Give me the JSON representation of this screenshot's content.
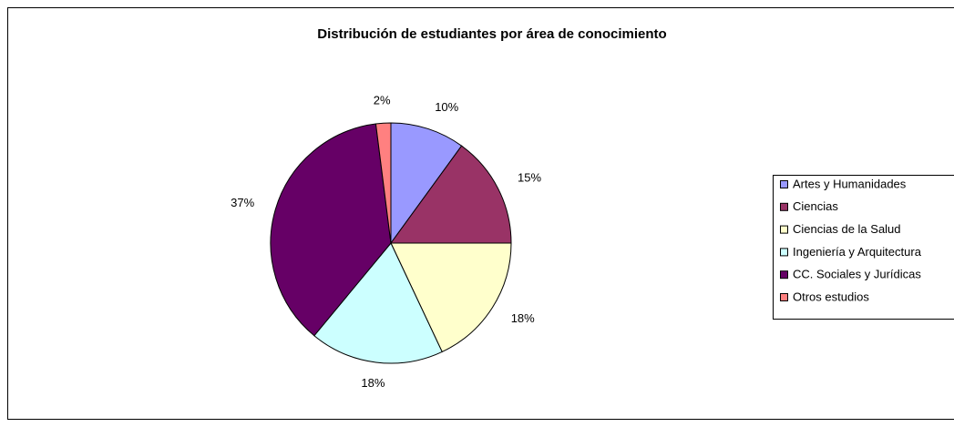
{
  "chart_data": {
    "type": "pie",
    "title": "Distribución de estudiantes por área de conocimiento",
    "categories": [
      "Artes y Humanidades",
      "Ciencias",
      "Ciencias de la Salud",
      "Ingeniería y Arquitectura",
      "CC. Sociales y Jurídicas",
      "Otros estudios"
    ],
    "values": [
      10,
      15,
      18,
      18,
      37,
      2
    ],
    "value_labels": [
      "10%",
      "15%",
      "18%",
      "18%",
      "37%",
      "2%"
    ],
    "colors": [
      "#9999ff",
      "#993366",
      "#ffffcc",
      "#ccffff",
      "#660066",
      "#ff8080"
    ],
    "legend": "right"
  }
}
